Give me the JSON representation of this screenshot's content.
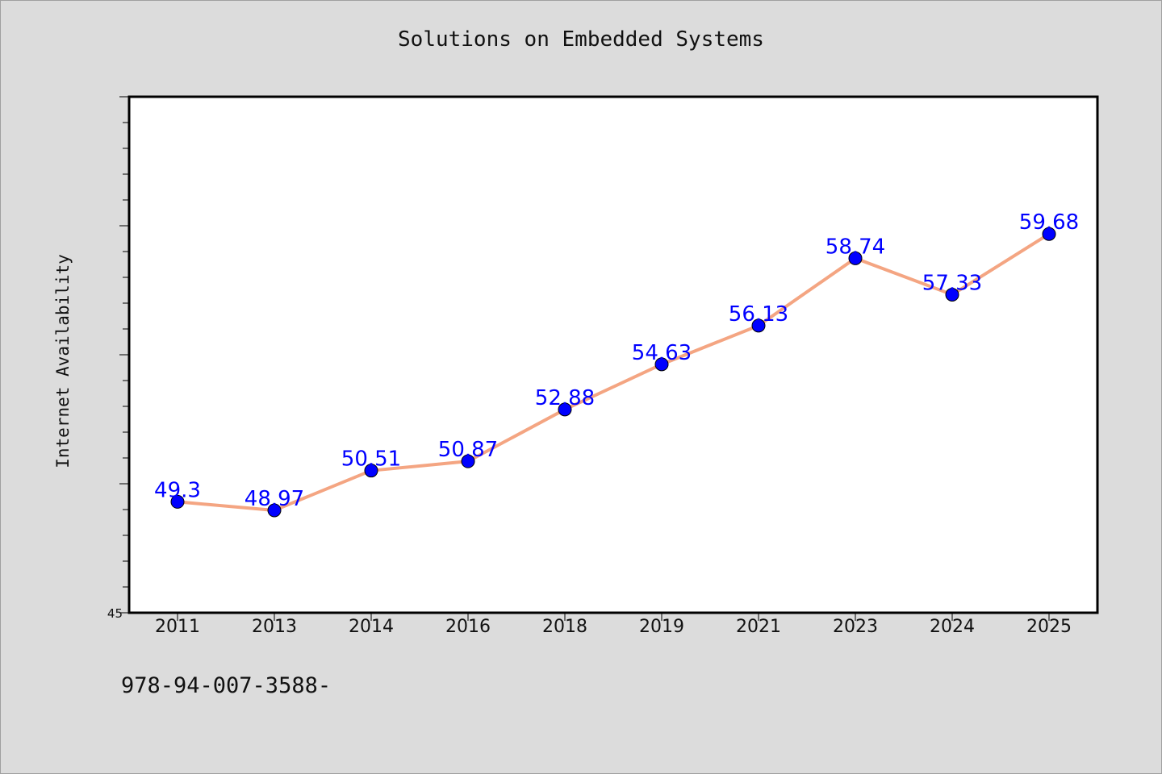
{
  "chart_data": {
    "type": "line",
    "title": "Solutions on Embedded Systems",
    "xlabel": "",
    "ylabel": "Internet Availability",
    "categories": [
      "2011",
      "2013",
      "2014",
      "2016",
      "2018",
      "2019",
      "2021",
      "2023",
      "2024",
      "2025"
    ],
    "series": [
      {
        "values": [
          49.3,
          48.97,
          50.51,
          50.87,
          52.88,
          54.63,
          56.13,
          58.74,
          57.33,
          59.68
        ],
        "labels": [
          "49.3",
          "48.97",
          "50.51",
          "50.87",
          "52.88",
          "54.63",
          "56.13",
          "58.74",
          "57.33",
          "59.68"
        ],
        "line_color": "#f4a582",
        "marker_color": "#0000ff"
      }
    ],
    "ylim": [
      45,
      65
    ],
    "y_tick_labels": [
      "45"
    ],
    "grid": false,
    "legend": "none"
  },
  "footer": {
    "code": "978-94-007-3588-"
  },
  "colors": {
    "background": "#dcdcdc",
    "plot_background": "#ffffff",
    "label_color": "#0000ff"
  }
}
